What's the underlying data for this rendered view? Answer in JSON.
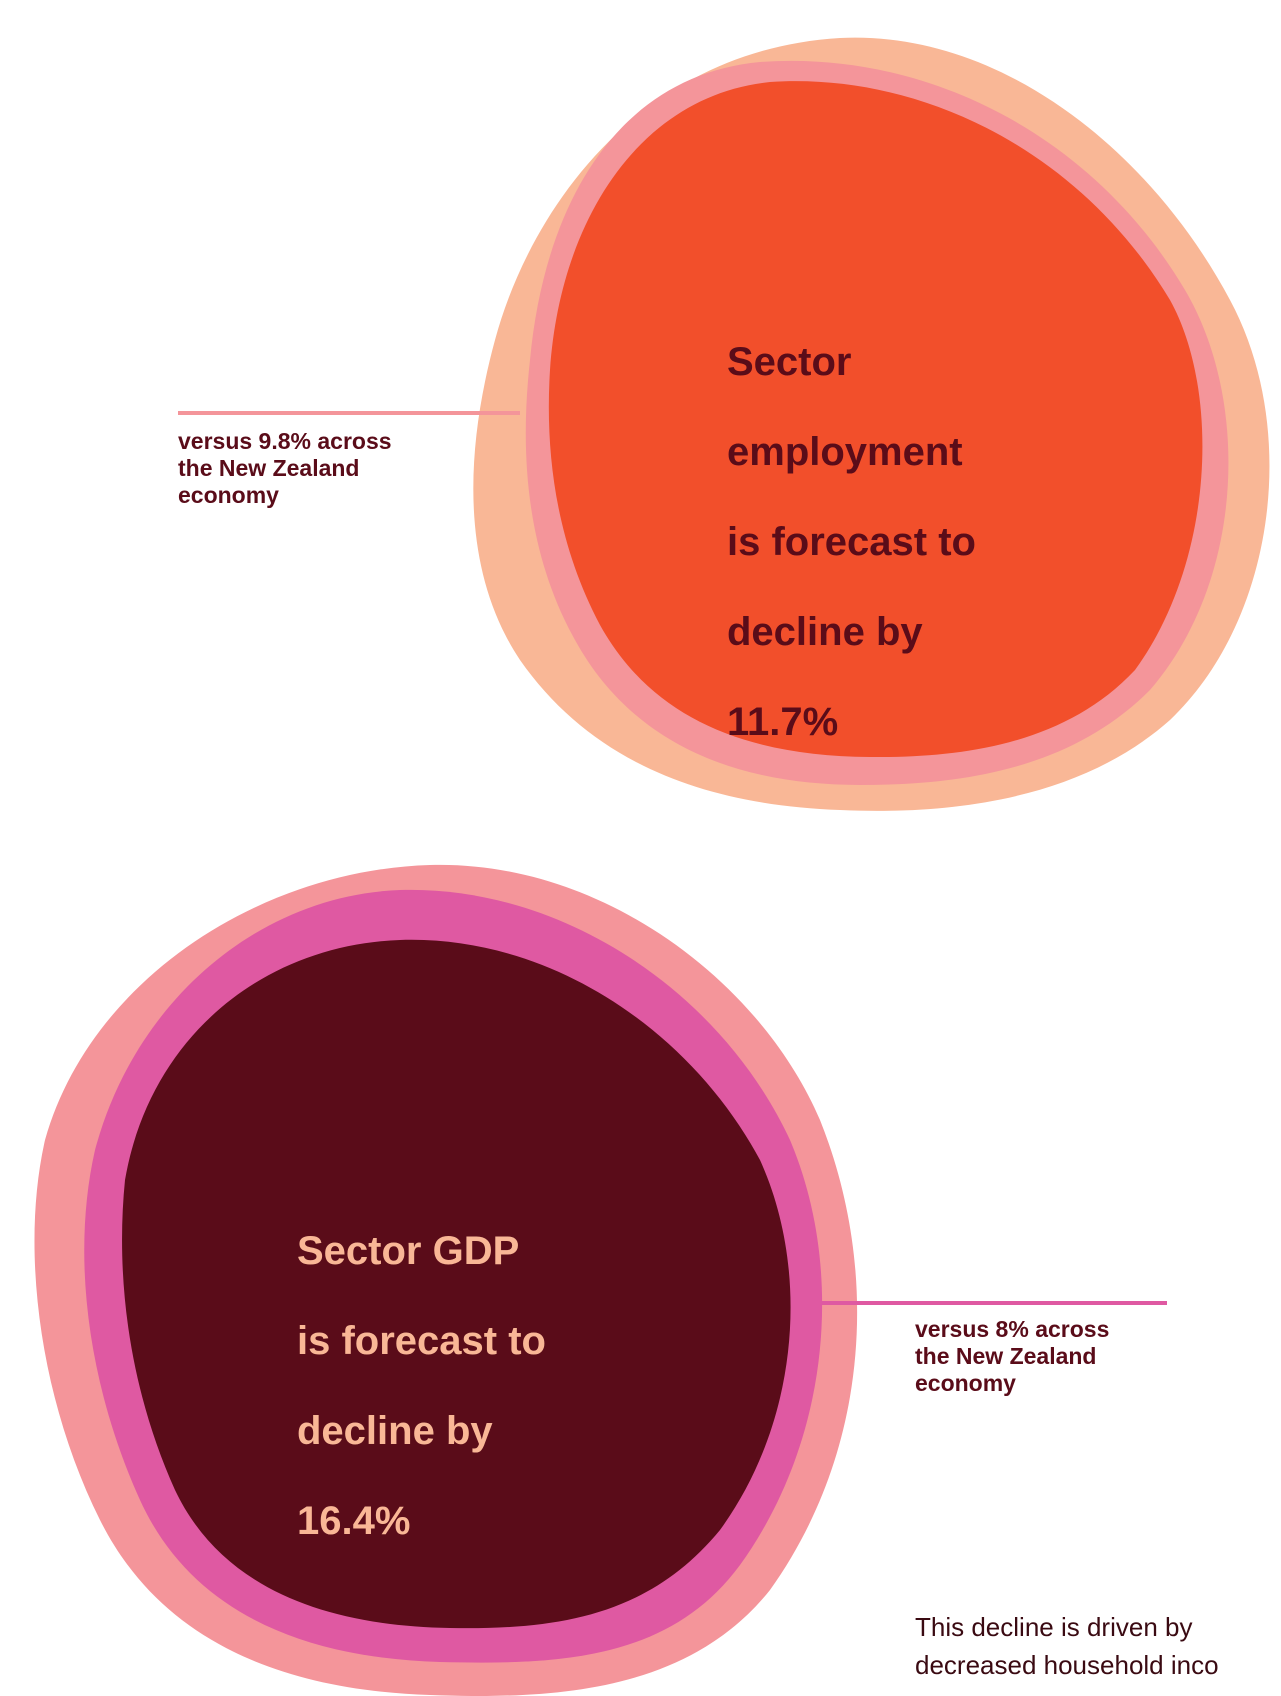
{
  "colors": {
    "peach": "#f9b796",
    "salmon_pink": "#f4959a",
    "orange_red": "#f24f2b",
    "magenta": "#df59a2",
    "dark_maroon": "#5a0c19",
    "text_maroon": "#5a0c19",
    "text_peach": "#f9b796"
  },
  "employment": {
    "headline_lines": [
      "Sector",
      "employment",
      "is forecast to",
      "decline by",
      "11.7%"
    ],
    "comparison_lines": [
      "versus 9.8% across",
      "the New Zealand",
      "economy"
    ]
  },
  "gdp": {
    "headline_lines": [
      "Sector GDP",
      "is forecast to",
      "decline by",
      "16.4%"
    ],
    "comparison_lines": [
      "versus 8% across",
      "the New Zealand",
      "economy"
    ]
  },
  "footer": {
    "lines": [
      "This decline is driven by",
      "decreased household inco"
    ]
  }
}
